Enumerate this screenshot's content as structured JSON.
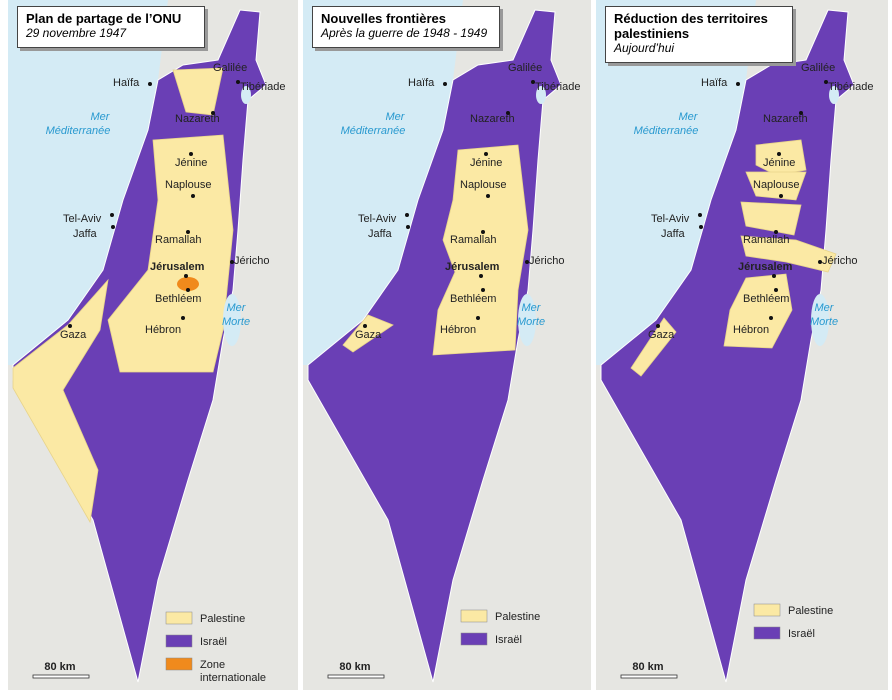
{
  "panels": [
    {
      "title": "Plan de partage de l’ONU",
      "subtitle": "29 novembre 1947",
      "places": [
        "Haïfa",
        "Galilée",
        "Tibériade",
        "Nazareth",
        "Jénine",
        "Naplouse",
        "Tel-Aviv",
        "Jaffa",
        "Ramallah",
        "Jérusalem",
        "Jéricho",
        "Bethléem",
        "Hébron",
        "Gaza"
      ],
      "sea": [
        "Mer",
        "Méditerranée"
      ],
      "dead_sea": [
        "Mer",
        "Morte"
      ],
      "legend": [
        "Palestine",
        "Israël",
        "Zone internationale"
      ],
      "scale": "80 km"
    },
    {
      "title": "Nouvelles frontières",
      "subtitle": "Après la guerre de 1948 - 1949",
      "places": [
        "Haïfa",
        "Galilée",
        "Tibériade",
        "Nazareth",
        "Jénine",
        "Naplouse",
        "Tel-Aviv",
        "Jaffa",
        "Ramallah",
        "Jérusalem",
        "Jéricho",
        "Bethléem",
        "Hébron",
        "Gaza"
      ],
      "sea": [
        "Mer",
        "Méditerranée"
      ],
      "dead_sea": [
        "Mer",
        "Morte"
      ],
      "legend": [
        "Palestine",
        "Israël"
      ],
      "scale": "80 km"
    },
    {
      "title": "Réduction des territoires palestiniens",
      "subtitle": "Aujourd’hui",
      "places": [
        "Haïfa",
        "Galilée",
        "Tibériade",
        "Nazareth",
        "Jénine",
        "Naplouse",
        "Tel-Aviv",
        "Jaffa",
        "Ramallah",
        "Jérusalem",
        "Jéricho",
        "Bethléem",
        "Hébron",
        "Gaza"
      ],
      "sea": [
        "Mer",
        "Méditerranée"
      ],
      "dead_sea": [
        "Mer",
        "Morte"
      ],
      "legend": [
        "Palestine",
        "Israël"
      ],
      "scale": "80 km"
    }
  ]
}
